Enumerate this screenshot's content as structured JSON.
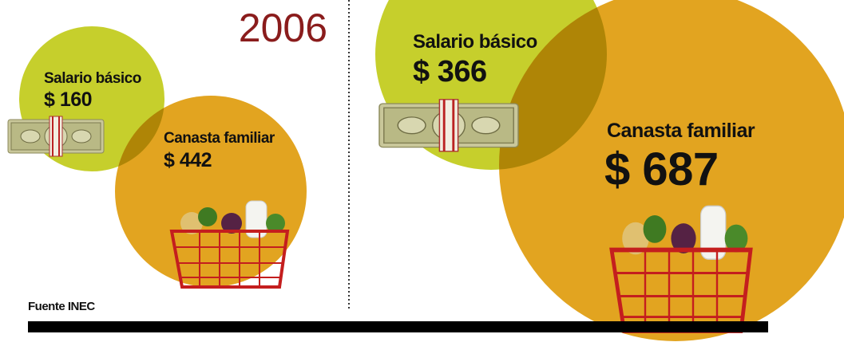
{
  "panels": [
    {
      "year": "2006",
      "salary": {
        "label": "Salario básico",
        "amount": "$ 160"
      },
      "basket": {
        "label": "Canasta familiar",
        "amount": "$ 442"
      }
    },
    {
      "salary": {
        "label": "Salario básico",
        "amount": "$ 366"
      },
      "basket": {
        "label": "Canasta familiar",
        "amount": "$ 687"
      }
    }
  ],
  "source": "Fuente INEC"
}
